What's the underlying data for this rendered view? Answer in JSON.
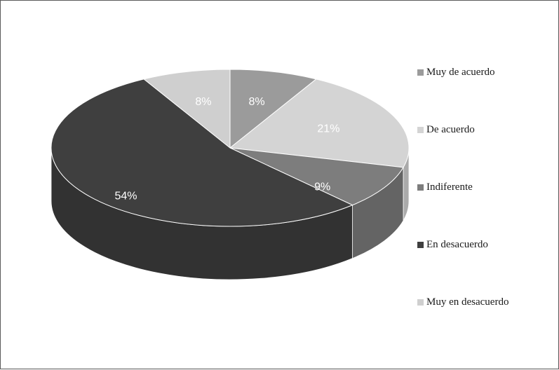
{
  "chart_data": {
    "type": "pie",
    "style": "3d",
    "categories": [
      "Muy de acuerdo",
      "De acuerdo",
      "Indiferente",
      "En desacuerdo",
      "Muy en desacuerdo"
    ],
    "values": [
      8,
      21,
      9,
      54,
      8
    ],
    "data_labels": [
      "8%",
      "21%",
      "9%",
      "54%",
      "8%"
    ],
    "colors": [
      "#9b9b9b",
      "#d4d4d4",
      "#7d7d7d",
      "#3f3f3f",
      "#cfcfcf"
    ],
    "label_colors": [
      "#ffffff",
      "#ffffff",
      "#ffffff",
      "#ffffff",
      "#ffffff"
    ],
    "legend_position": "right",
    "title": ""
  }
}
